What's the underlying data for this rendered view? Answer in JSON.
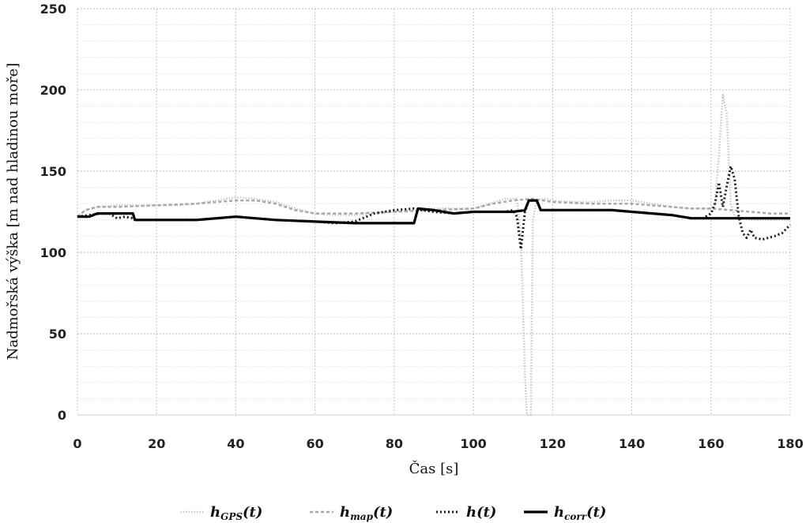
{
  "chart_data": {
    "type": "line",
    "title": "",
    "xlabel": "Čas [s]",
    "ylabel": "Nadmořská výška [m nad hladinou moře]",
    "xlim": [
      0,
      180
    ],
    "ylim": [
      0,
      250
    ],
    "x_ticks": [
      "0",
      "20",
      "40",
      "60",
      "80",
      "100",
      "120",
      "140",
      "160",
      "180"
    ],
    "y_ticks": [
      "0",
      "50",
      "100",
      "150",
      "200",
      "250"
    ],
    "grid": "dotted",
    "legend_position": "bottom",
    "series": [
      {
        "name": "hGPS(t)",
        "legend_main": "h",
        "legend_sub": "GPS",
        "legend_tail": "(t)",
        "style": "dotted-light",
        "color": "#c8c8c8",
        "points": [
          [
            0,
            122
          ],
          [
            2,
            126
          ],
          [
            5,
            128
          ],
          [
            10,
            129
          ],
          [
            15,
            129
          ],
          [
            20,
            129
          ],
          [
            25,
            129
          ],
          [
            30,
            130
          ],
          [
            35,
            132
          ],
          [
            40,
            134
          ],
          [
            45,
            133
          ],
          [
            50,
            131
          ],
          [
            55,
            127
          ],
          [
            60,
            124
          ],
          [
            65,
            123
          ],
          [
            70,
            123
          ],
          [
            75,
            124
          ],
          [
            80,
            125
          ],
          [
            85,
            126
          ],
          [
            90,
            127
          ],
          [
            95,
            127
          ],
          [
            100,
            127
          ],
          [
            104,
            130
          ],
          [
            108,
            133
          ],
          [
            111,
            133
          ],
          [
            112,
            110
          ],
          [
            113,
            25
          ],
          [
            113.5,
            0
          ],
          [
            114.5,
            0
          ],
          [
            115,
            120
          ],
          [
            116,
            132
          ],
          [
            118,
            133
          ],
          [
            120,
            132
          ],
          [
            125,
            131
          ],
          [
            130,
            131
          ],
          [
            135,
            132
          ],
          [
            140,
            132
          ],
          [
            145,
            130
          ],
          [
            150,
            128
          ],
          [
            155,
            127
          ],
          [
            160,
            127
          ],
          [
            161,
            130
          ],
          [
            162,
            160
          ],
          [
            163,
            197
          ],
          [
            164,
            185
          ],
          [
            165,
            130
          ],
          [
            166,
            122
          ],
          [
            168,
            121
          ],
          [
            170,
            120
          ],
          [
            175,
            120
          ],
          [
            180,
            120
          ]
        ]
      },
      {
        "name": "hmap(t)",
        "legend_main": "h",
        "legend_sub": "map",
        "legend_tail": "(t)",
        "style": "dashed-grey",
        "color": "#a8a8a8",
        "points": [
          [
            0,
            122
          ],
          [
            2,
            126
          ],
          [
            5,
            128
          ],
          [
            10,
            128
          ],
          [
            20,
            129
          ],
          [
            30,
            130
          ],
          [
            40,
            132
          ],
          [
            45,
            132
          ],
          [
            50,
            130
          ],
          [
            55,
            126
          ],
          [
            60,
            124
          ],
          [
            70,
            124
          ],
          [
            80,
            125
          ],
          [
            90,
            126
          ],
          [
            100,
            127
          ],
          [
            105,
            130
          ],
          [
            110,
            132
          ],
          [
            115,
            133
          ],
          [
            120,
            131
          ],
          [
            130,
            130
          ],
          [
            140,
            130
          ],
          [
            145,
            129
          ],
          [
            150,
            128
          ],
          [
            155,
            127
          ],
          [
            160,
            127
          ],
          [
            165,
            126
          ],
          [
            170,
            125
          ],
          [
            175,
            124
          ],
          [
            180,
            124
          ]
        ]
      },
      {
        "name": "h(t)",
        "legend_main": "h",
        "legend_sub": "",
        "legend_tail": "(t)",
        "style": "dotted-dark",
        "color": "#1a1a1a",
        "points": [
          [
            0,
            122
          ],
          [
            3,
            123
          ],
          [
            6,
            124
          ],
          [
            8,
            124
          ],
          [
            10,
            121
          ],
          [
            12,
            122
          ],
          [
            14,
            121
          ],
          [
            15,
            120
          ],
          [
            20,
            120
          ],
          [
            30,
            120
          ],
          [
            40,
            122
          ],
          [
            50,
            120
          ],
          [
            60,
            119
          ],
          [
            65,
            118
          ],
          [
            70,
            119
          ],
          [
            75,
            124
          ],
          [
            80,
            126
          ],
          [
            85,
            127
          ],
          [
            87,
            126
          ],
          [
            90,
            125
          ],
          [
            95,
            124
          ],
          [
            100,
            125
          ],
          [
            105,
            125
          ],
          [
            108,
            125
          ],
          [
            110,
            126
          ],
          [
            111,
            122
          ],
          [
            112,
            102
          ],
          [
            113,
            125
          ],
          [
            114,
            132
          ],
          [
            116,
            132
          ],
          [
            117,
            126
          ],
          [
            120,
            126
          ],
          [
            130,
            126
          ],
          [
            135,
            126
          ],
          [
            140,
            125
          ],
          [
            150,
            123
          ],
          [
            155,
            121
          ],
          [
            158,
            121
          ],
          [
            160,
            124
          ],
          [
            161,
            130
          ],
          [
            162,
            143
          ],
          [
            163,
            128
          ],
          [
            164,
            141
          ],
          [
            165,
            153
          ],
          [
            166,
            145
          ],
          [
            167,
            122
          ],
          [
            168,
            112
          ],
          [
            169,
            109
          ],
          [
            170,
            114
          ],
          [
            171,
            109
          ],
          [
            173,
            108
          ],
          [
            176,
            110
          ],
          [
            178,
            112
          ],
          [
            180,
            117
          ]
        ]
      },
      {
        "name": "hcorr(t)",
        "legend_main": "h",
        "legend_sub": "corr",
        "legend_tail": "(t)",
        "style": "solid-dark",
        "color": "#000000",
        "points": [
          [
            0,
            122
          ],
          [
            3,
            122
          ],
          [
            5,
            124
          ],
          [
            14,
            124
          ],
          [
            14.5,
            120
          ],
          [
            20,
            120
          ],
          [
            30,
            120
          ],
          [
            40,
            122
          ],
          [
            50,
            120
          ],
          [
            60,
            119
          ],
          [
            70,
            118
          ],
          [
            80,
            118
          ],
          [
            85,
            118
          ],
          [
            86,
            127
          ],
          [
            90,
            126
          ],
          [
            95,
            124
          ],
          [
            100,
            125
          ],
          [
            105,
            125
          ],
          [
            110,
            125
          ],
          [
            113,
            126
          ],
          [
            114,
            132
          ],
          [
            116,
            132
          ],
          [
            117,
            126
          ],
          [
            120,
            126
          ],
          [
            130,
            126
          ],
          [
            135,
            126
          ],
          [
            140,
            125
          ],
          [
            150,
            123
          ],
          [
            155,
            121
          ],
          [
            160,
            121
          ],
          [
            170,
            121
          ],
          [
            180,
            121
          ]
        ]
      }
    ]
  }
}
